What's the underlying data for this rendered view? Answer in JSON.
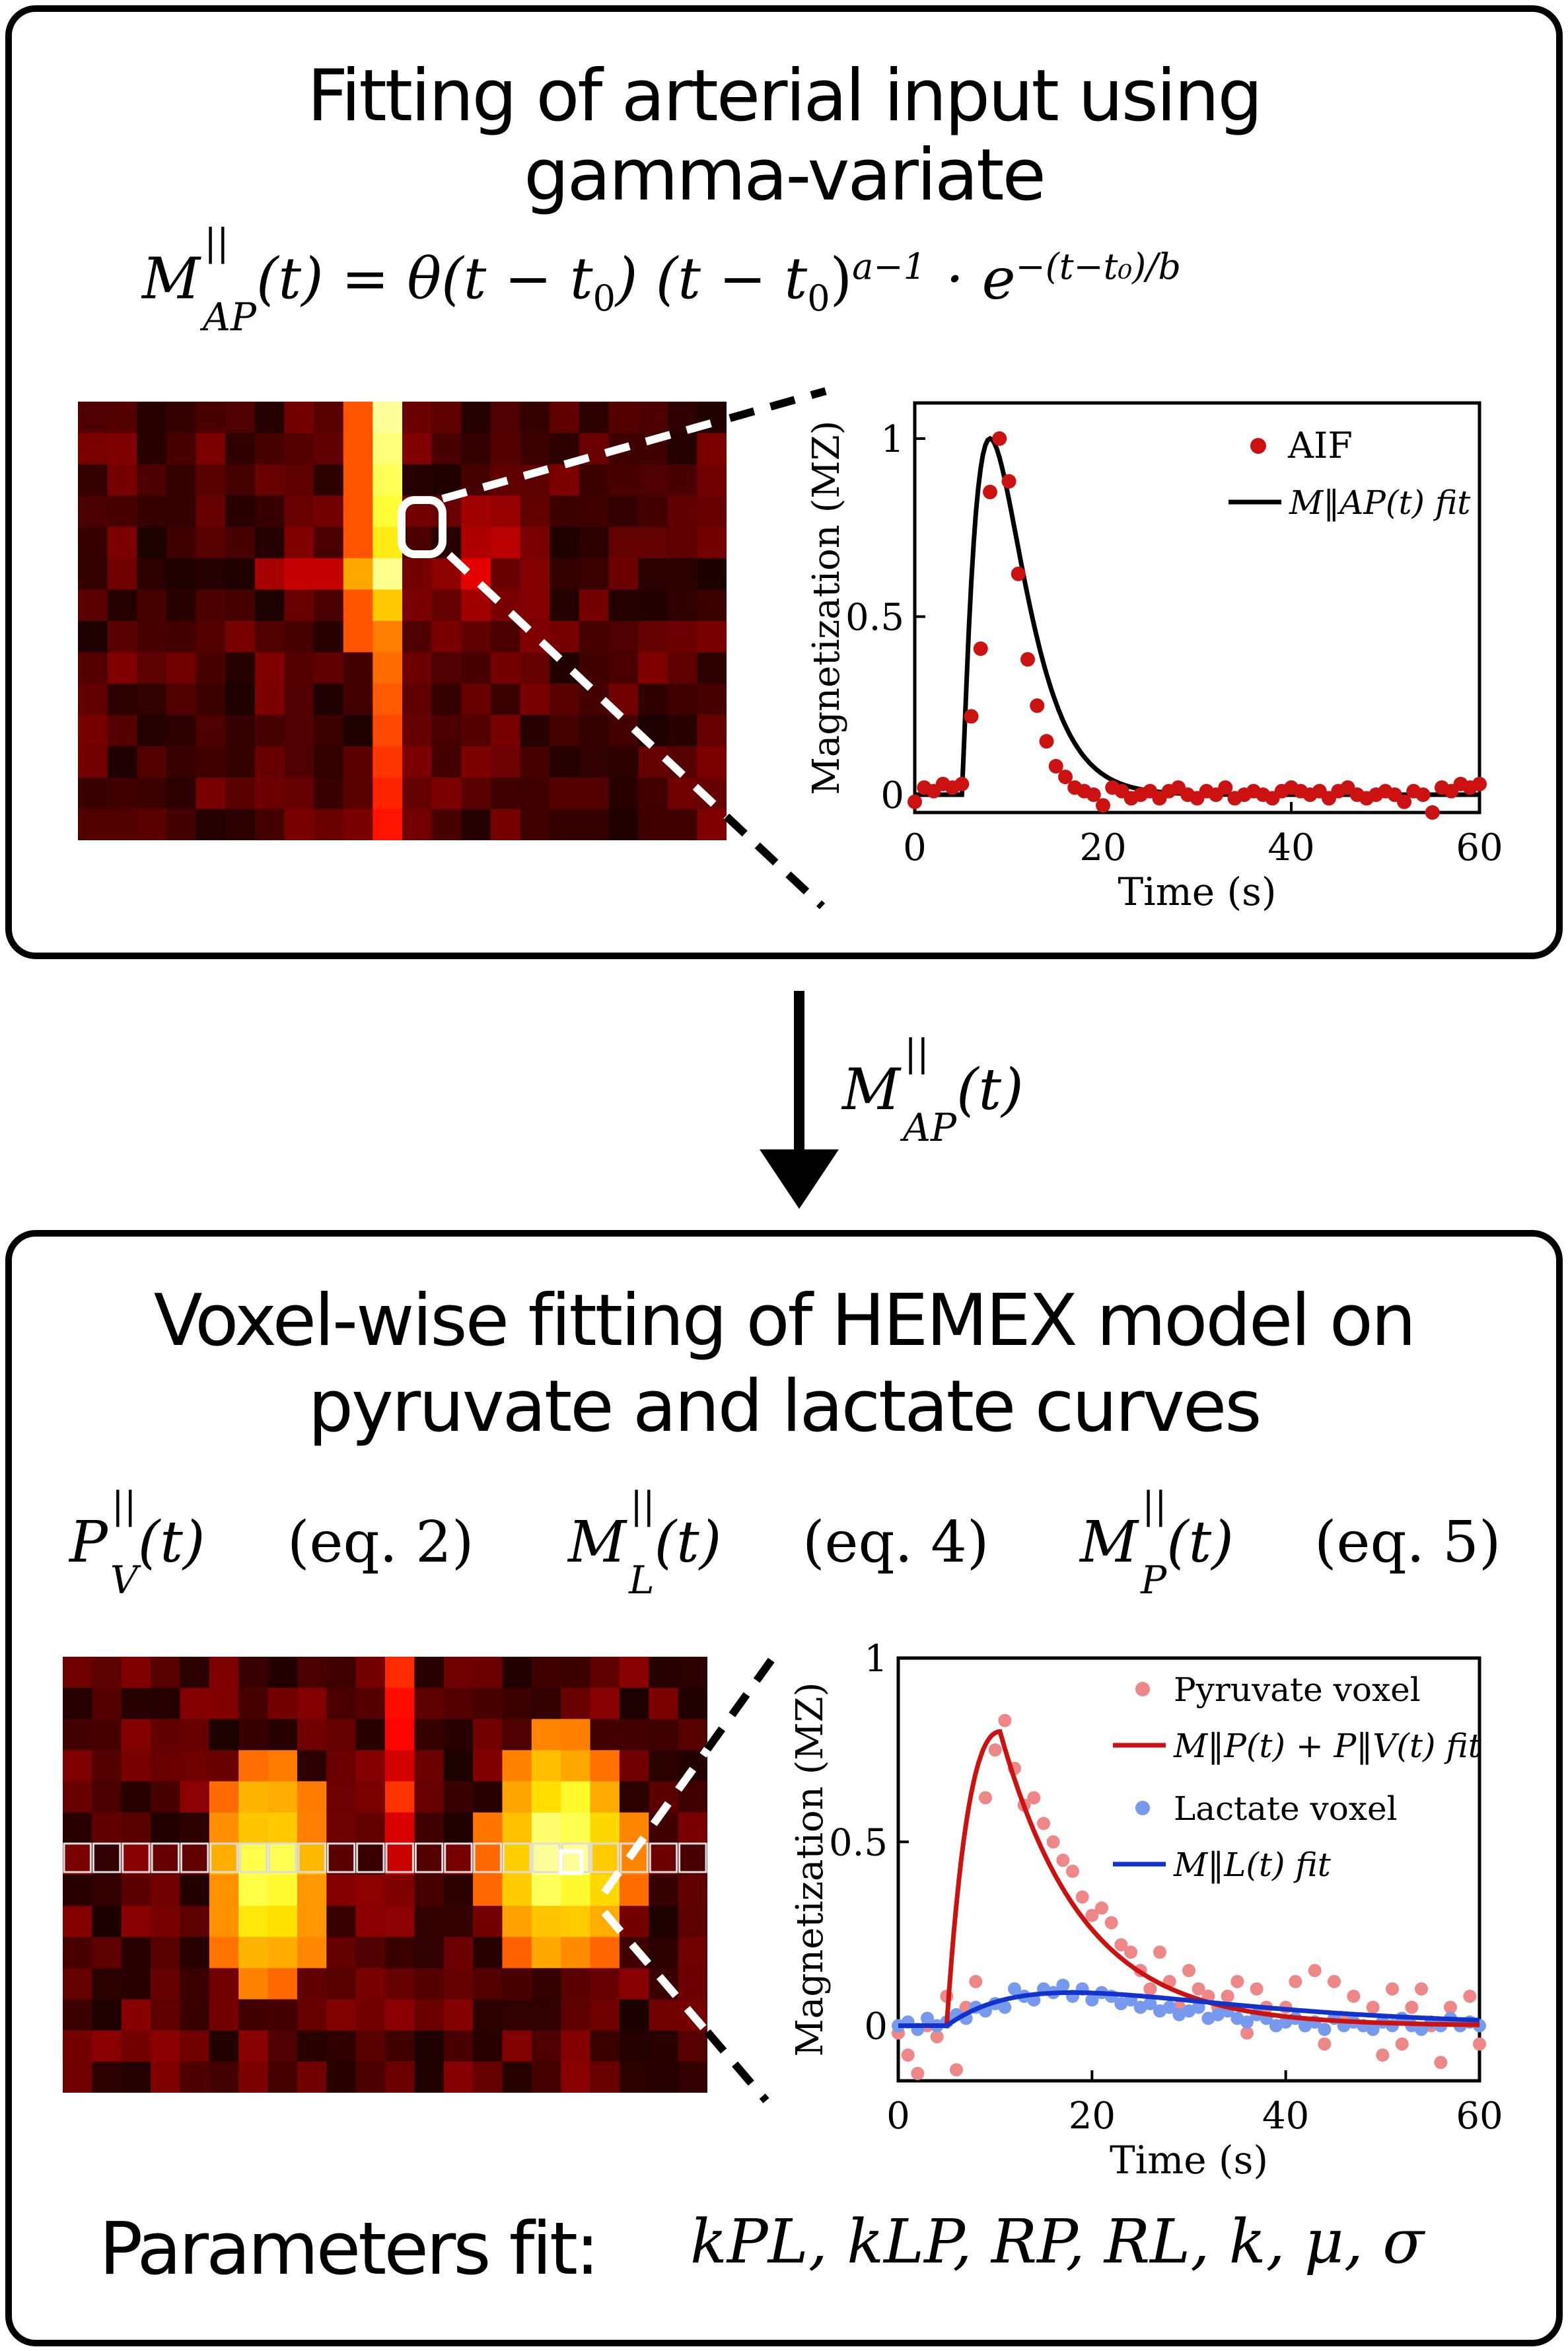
{
  "top_panel": {
    "title_line1": "Fitting of arterial input using",
    "title_line2": "gamma-variate",
    "equation_lhs": "M",
    "equation_sup": "||",
    "equation_sub": "AP",
    "equation_rhs": "(t) = θ(t − t",
    "equation_rest": "0",
    "equation_tail": ") (t − t",
    "equation_exp": "a−1",
    "equation_exp_tail": "· e",
    "equation_exp2": "−(t−t₀)/b"
  },
  "arrow_label": {
    "base": "M",
    "sup": "||",
    "sub": "AP",
    "tail": "(t)"
  },
  "bottom_panel": {
    "title_line1": "Voxel-wise fitting of HEMEX model on",
    "title_line2": "pyruvate and lactate curves",
    "models": [
      {
        "base": "P",
        "sup": "||",
        "sub": "V",
        "tail": "(t)",
        "ref": "(eq. 2)"
      },
      {
        "base": "M",
        "sup": "||",
        "sub": "L",
        "tail": "(t)",
        "ref": "(eq. 4)"
      },
      {
        "base": "M",
        "sup": "||",
        "sub": "P",
        "tail": "(t)",
        "ref": "(eq. 5)"
      }
    ],
    "params_label": "Parameters fit:",
    "params_list": "kPL, kLP, RP, RL, k, μ, σ"
  },
  "chart_data": [
    {
      "type": "scatter",
      "xlabel": "Time (s)",
      "ylabel": "Magnetization (MZ)",
      "xlim": [
        0,
        60
      ],
      "ylim": [
        -0.05,
        1.1
      ],
      "xticks": [
        0,
        20,
        40,
        60
      ],
      "yticks": [
        0,
        0.5,
        1
      ],
      "ytick_labels": [
        "0",
        "0.5",
        "1"
      ],
      "legend_position": "top-right",
      "series": [
        {
          "name": "AIF",
          "kind": "points",
          "color": "#cc1111",
          "x": [
            0,
            1,
            2,
            3,
            4,
            5,
            6,
            7,
            8,
            9,
            10,
            11,
            12,
            13,
            14,
            15,
            16,
            17,
            18,
            19,
            20,
            21,
            22,
            23,
            24,
            25,
            26,
            27,
            28,
            29,
            30,
            31,
            32,
            33,
            34,
            35,
            36,
            37,
            38,
            39,
            40,
            41,
            42,
            43,
            44,
            45,
            46,
            47,
            48,
            49,
            50,
            51,
            52,
            53,
            54,
            55,
            56,
            57,
            58,
            59,
            60
          ],
          "y": [
            -0.02,
            0.02,
            0.01,
            0.03,
            0.02,
            0.03,
            0.22,
            0.41,
            0.85,
            1.0,
            0.88,
            0.62,
            0.38,
            0.25,
            0.15,
            0.08,
            0.05,
            0.02,
            0.01,
            0.0,
            -0.03,
            0.02,
            0.01,
            -0.01,
            0.0,
            0.01,
            -0.01,
            0.01,
            0.02,
            0.0,
            -0.01,
            0.01,
            0.0,
            0.02,
            -0.01,
            0.0,
            0.01,
            0.0,
            -0.01,
            0.01,
            0.02,
            0.01,
            0.0,
            0.01,
            -0.01,
            0.01,
            0.02,
            0.0,
            -0.01,
            0.0,
            0.01,
            0.0,
            -0.02,
            0.01,
            0.0,
            -0.05,
            0.02,
            0.01,
            0.03,
            0.02,
            0.03
          ]
        },
        {
          "name": "M‖AP(t) fit",
          "kind": "line",
          "color": "#000000",
          "t0": 5,
          "a": 2.2,
          "b": 2.5
        }
      ]
    },
    {
      "type": "scatter",
      "xlabel": "Time (s)",
      "ylabel": "Magnetization (MZ)",
      "xlim": [
        0,
        60
      ],
      "ylim": [
        -0.15,
        1.0
      ],
      "xticks": [
        0,
        20,
        40,
        60
      ],
      "yticks": [
        0,
        0.5,
        1
      ],
      "ytick_labels": [
        "0",
        "0.5",
        "1"
      ],
      "legend_position": "top-right",
      "series": [
        {
          "name": "Pyruvate voxel",
          "kind": "points",
          "color": "#ee8888",
          "x": [
            0,
            1,
            2,
            3,
            4,
            5,
            6,
            7,
            8,
            9,
            10,
            11,
            12,
            13,
            14,
            15,
            16,
            17,
            18,
            19,
            20,
            21,
            22,
            23,
            24,
            25,
            26,
            27,
            28,
            29,
            30,
            31,
            32,
            33,
            34,
            35,
            36,
            37,
            38,
            39,
            40,
            41,
            42,
            43,
            44,
            45,
            46,
            47,
            48,
            49,
            50,
            51,
            52,
            53,
            54,
            55,
            56,
            57,
            58,
            59,
            60
          ],
          "y": [
            -0.02,
            -0.08,
            -0.13,
            0.0,
            -0.03,
            0.08,
            -0.12,
            0.05,
            0.12,
            0.62,
            0.75,
            0.83,
            0.7,
            0.6,
            0.62,
            0.55,
            0.5,
            0.45,
            0.42,
            0.35,
            0.3,
            0.32,
            0.28,
            0.22,
            0.2,
            0.15,
            0.1,
            0.2,
            0.12,
            0.05,
            0.15,
            0.1,
            0.08,
            0.05,
            0.08,
            0.12,
            -0.02,
            0.1,
            0.05,
            0.0,
            0.05,
            0.12,
            0.0,
            0.15,
            -0.05,
            0.12,
            0.02,
            0.08,
            0.0,
            0.05,
            -0.08,
            0.1,
            -0.05,
            0.05,
            0.1,
            0.0,
            -0.1,
            0.05,
            0.0,
            0.08,
            -0.05
          ]
        },
        {
          "name": "M‖P(t) + P‖V(t) fit",
          "kind": "line",
          "color": "#cc1111"
        },
        {
          "name": "Lactate voxel",
          "kind": "points",
          "color": "#7799ee",
          "x": [
            0,
            1,
            2,
            3,
            4,
            5,
            6,
            7,
            8,
            9,
            10,
            11,
            12,
            13,
            14,
            15,
            16,
            17,
            18,
            19,
            20,
            21,
            22,
            23,
            24,
            25,
            26,
            27,
            28,
            29,
            30,
            31,
            32,
            33,
            34,
            35,
            36,
            37,
            38,
            39,
            40,
            41,
            42,
            43,
            44,
            45,
            46,
            47,
            48,
            49,
            50,
            51,
            52,
            53,
            54,
            55,
            56,
            57,
            58,
            59,
            60
          ],
          "y": [
            0.0,
            0.01,
            -0.01,
            0.02,
            0.0,
            0.01,
            0.03,
            0.02,
            0.05,
            0.04,
            0.06,
            0.05,
            0.1,
            0.08,
            0.07,
            0.1,
            0.09,
            0.11,
            0.08,
            0.1,
            0.07,
            0.09,
            0.08,
            0.06,
            0.07,
            0.05,
            0.06,
            0.04,
            0.05,
            0.03,
            0.04,
            0.05,
            0.02,
            0.03,
            0.04,
            0.02,
            0.01,
            0.03,
            0.02,
            0.0,
            0.01,
            0.02,
            0.0,
            0.01,
            -0.01,
            0.02,
            0.0,
            0.01,
            0.0,
            -0.01,
            0.01,
            0.0,
            0.02,
            0.0,
            -0.01,
            0.01,
            0.0,
            0.02,
            0.0,
            0.01,
            0.0
          ]
        },
        {
          "name": "M‖L(t) fit",
          "kind": "line",
          "color": "#1133cc"
        }
      ]
    }
  ]
}
